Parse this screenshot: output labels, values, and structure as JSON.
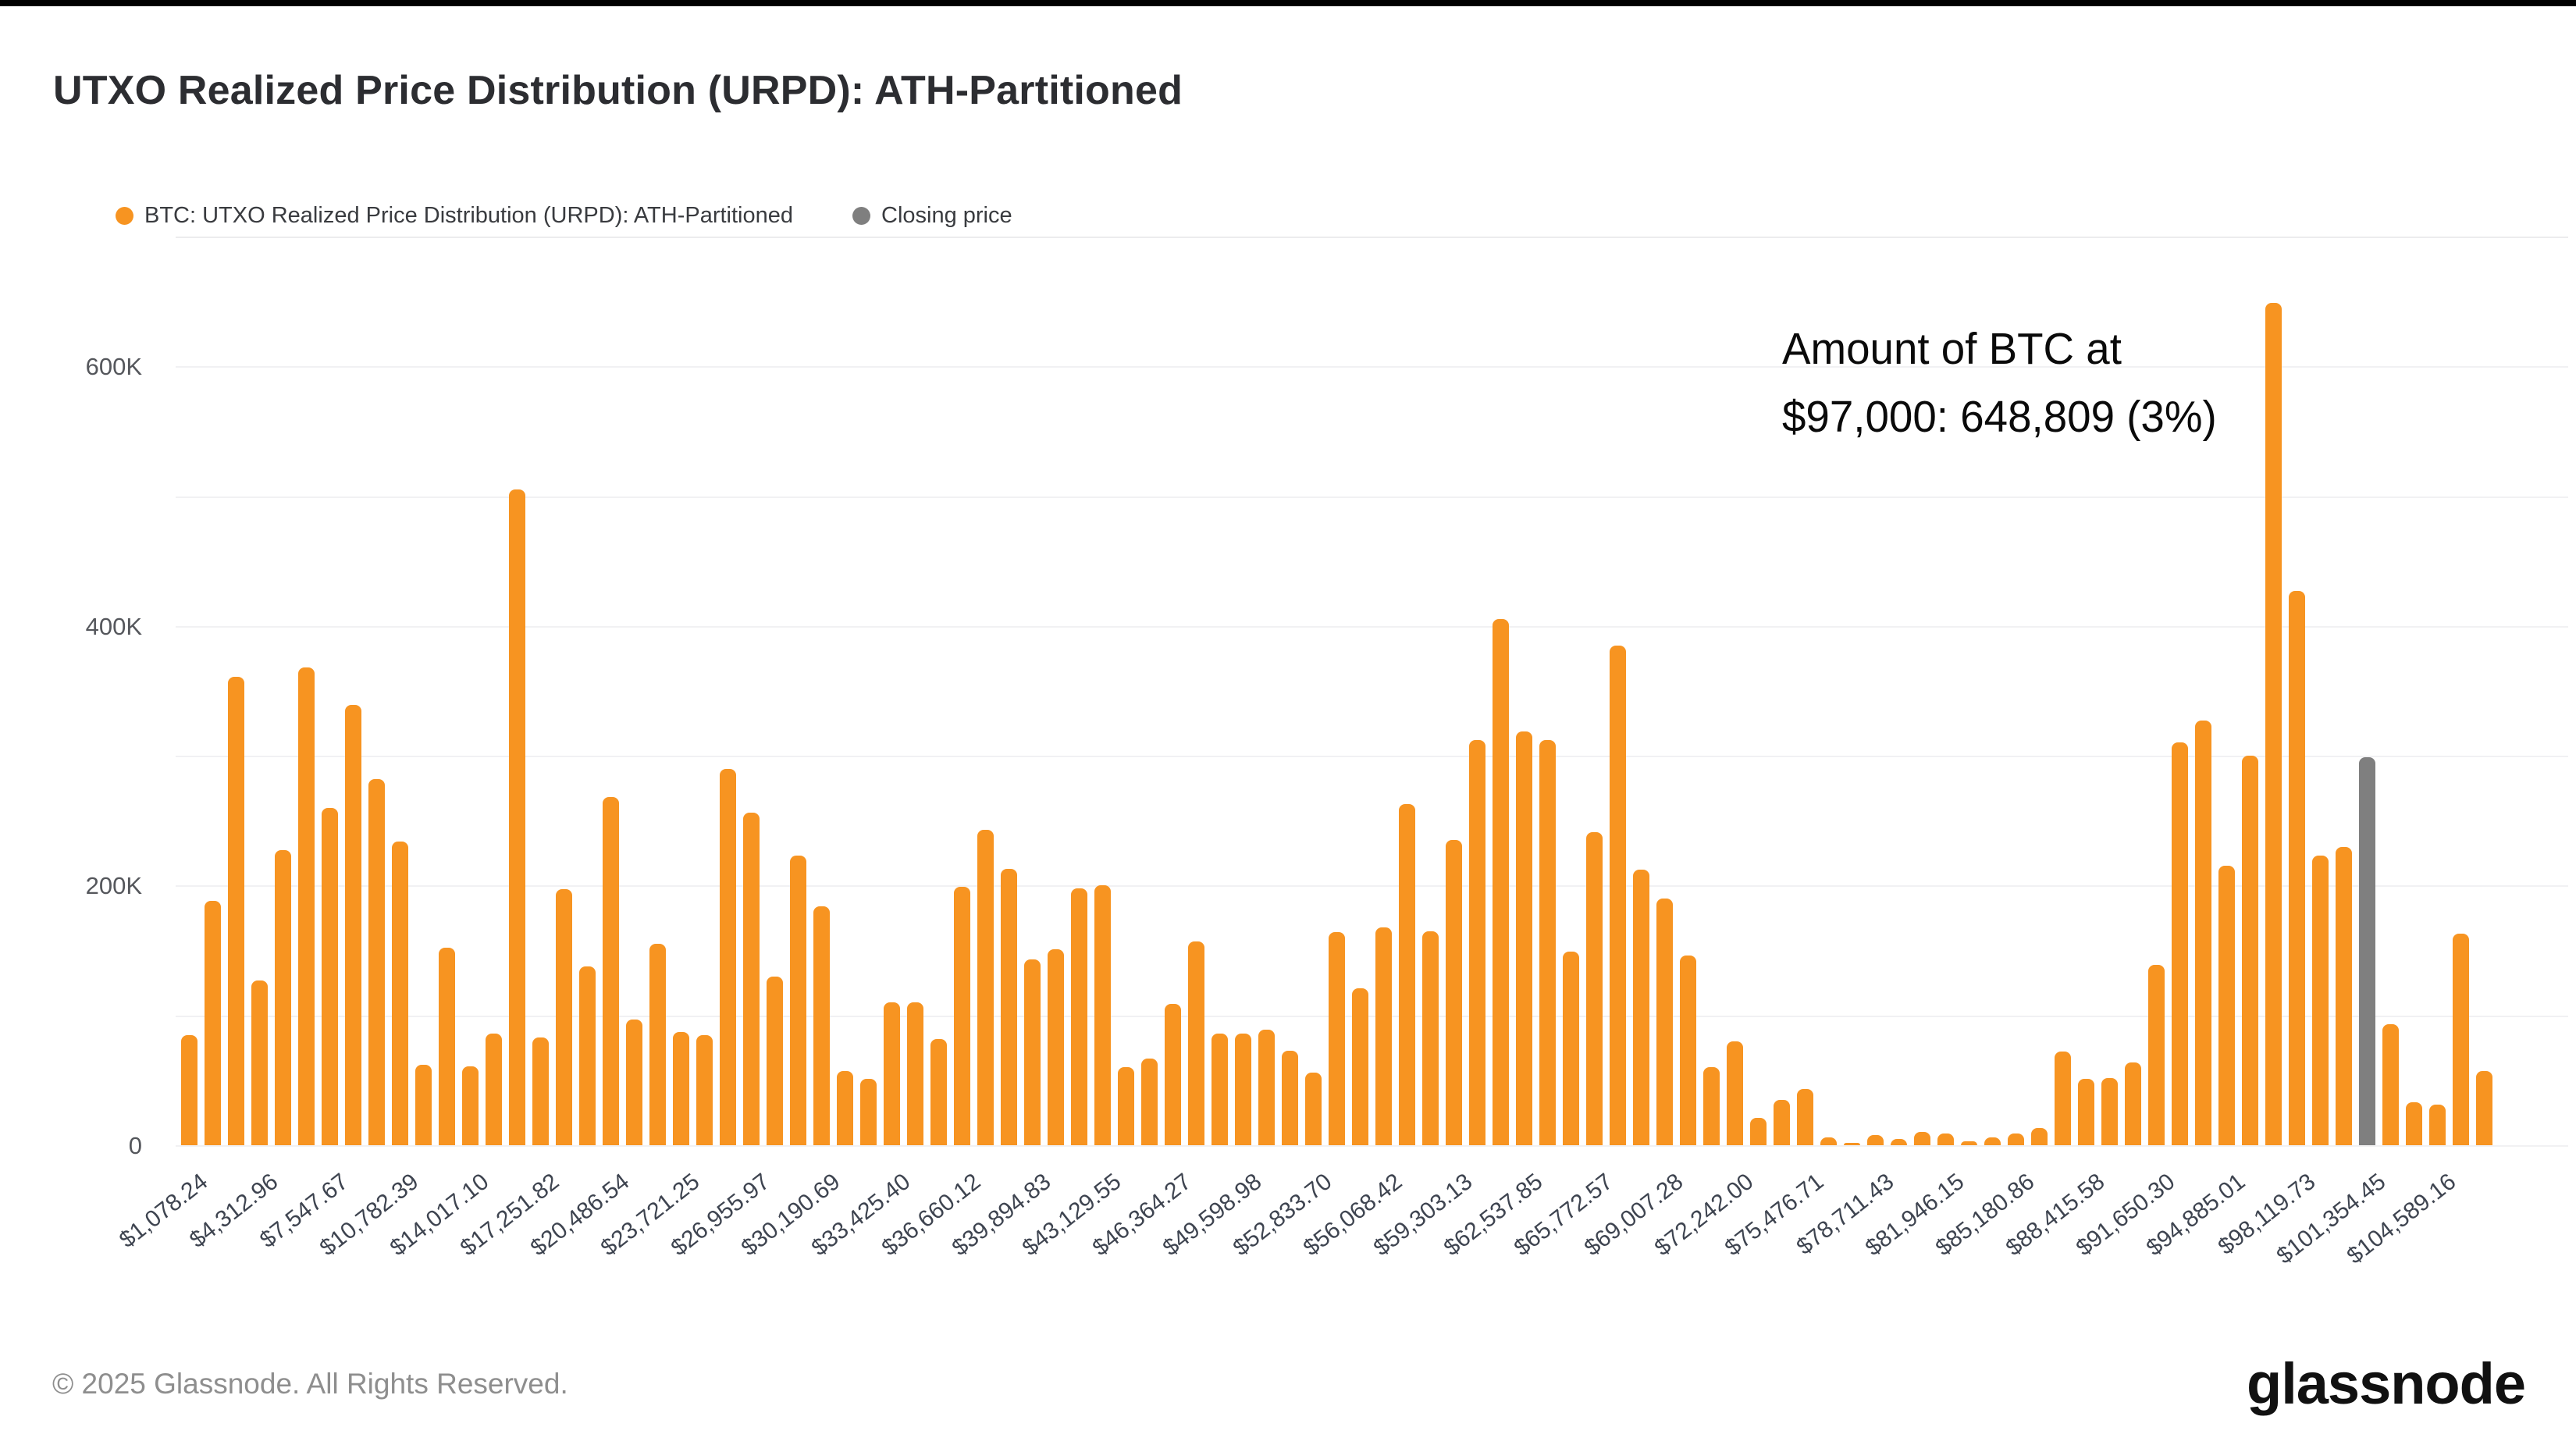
{
  "page": {
    "title": "UTXO Realized Price Distribution (URPD): ATH-Partitioned"
  },
  "legend": {
    "series1_label": "BTC: UTXO Realized Price Distribution (URPD): ATH-Partitioned",
    "series1_color": "#F79421",
    "series2_label": "Closing price",
    "series2_color": "#7F7F7F"
  },
  "annotation": {
    "line1": "Amount of BTC at",
    "line2": "$97,000: 648,809 (3%)"
  },
  "footer": {
    "copyright": "© 2025 Glassnode. All Rights Reserved.",
    "brand": "glassnode"
  },
  "chart_data": {
    "type": "bar",
    "title": "UTXO Realized Price Distribution (URPD): ATH-Partitioned",
    "xlabel": "",
    "ylabel": "",
    "ylim": [
      0,
      660000
    ],
    "grid": "horizontal, every 100K",
    "legend_position": "top-left",
    "yticks_labeled": {
      "values": [
        0,
        200000,
        400000,
        600000
      ],
      "labels": [
        "0",
        "200K",
        "400K",
        "600K"
      ]
    },
    "gridline_values": [
      0,
      100000,
      200000,
      300000,
      400000,
      500000,
      600000
    ],
    "bucket_price_step": 1078.24,
    "first_bucket_price": 1078.24,
    "x_tick_every_n_bars": 3,
    "x_tick_first_bar_index": 0,
    "x_tick_labels": [
      "$1,078.24",
      "$4,312.96",
      "$7,547.67",
      "$10,782.39",
      "$14,017.10",
      "$17,251.82",
      "$20,486.54",
      "$23,721.25",
      "$26,955.97",
      "$30,190.69",
      "$33,425.40",
      "$36,660.12",
      "$39,894.83",
      "$43,129.55",
      "$46,364.27",
      "$49,598.98",
      "$52,833.70",
      "$56,068.42",
      "$59,303.13",
      "$62,537.85",
      "$65,772.57",
      "$69,007.28",
      "$72,242.00",
      "$75,476.71",
      "$78,711.43",
      "$81,946.15",
      "$85,180.86",
      "$88,415.58",
      "$91,650.30",
      "$94,885.01",
      "$98,119.73",
      "$101,354.45",
      "$104,589.16"
    ],
    "series": [
      {
        "name": "BTC: UTXO Realized Price Distribution (URPD): ATH-Partitioned",
        "color": "#F79421"
      },
      {
        "name": "Closing price",
        "color": "#7F7F7F"
      }
    ],
    "values": [
      85000,
      188000,
      361000,
      127000,
      227000,
      368000,
      260000,
      339000,
      282000,
      234000,
      62000,
      152000,
      61000,
      86000,
      505000,
      83000,
      197000,
      138000,
      268000,
      97000,
      155000,
      87000,
      85000,
      290000,
      256000,
      130000,
      223000,
      184000,
      57000,
      51000,
      110000,
      110000,
      82000,
      199000,
      243000,
      213000,
      143000,
      151000,
      198000,
      200000,
      60000,
      67000,
      109000,
      157000,
      86000,
      86000,
      89000,
      73000,
      56000,
      164000,
      121000,
      168000,
      263000,
      165000,
      235000,
      312000,
      405000,
      319000,
      312000,
      149000,
      241000,
      385000,
      212000,
      190000,
      146000,
      60000,
      80000,
      21000,
      35000,
      43000,
      6000,
      2000,
      8000,
      5000,
      10000,
      9000,
      3000,
      6000,
      9000,
      13000,
      72000,
      51000,
      52000,
      64000,
      139000,
      310000,
      327000,
      215000,
      300000,
      648809,
      427000,
      223000,
      230000,
      299000,
      93000,
      33000,
      31000,
      163000,
      57000
    ],
    "closing_price_bar_index": 93,
    "highlighted_bar": {
      "index": 89,
      "approx_price": "$97,000",
      "value": 648809,
      "percent_of_supply": "3%"
    }
  },
  "layout_note": "values are BTC amounts per realized-price bucket"
}
